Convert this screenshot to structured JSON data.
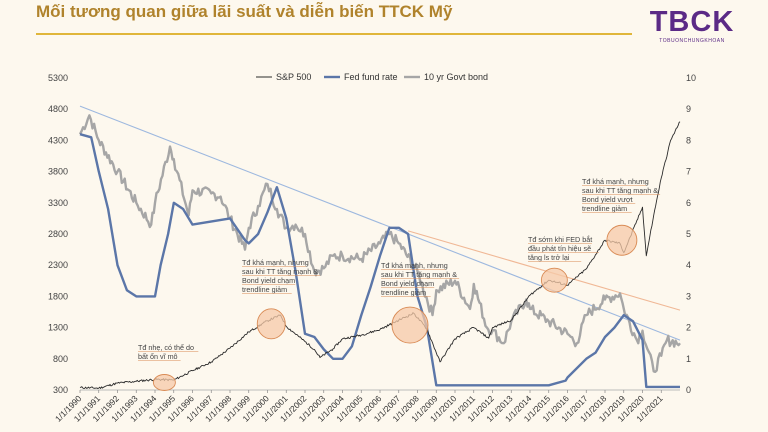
{
  "header": {
    "title": "Mối tương quan giữa lãi suất và diễn biến TTCK Mỹ",
    "logo_main": "TBCK",
    "logo_sub": "TOBUONCHUNGKHOAN"
  },
  "colors": {
    "sp500": "#2b2b2b",
    "fed": "#5b76a8",
    "bond": "#a6a6a6",
    "trend_blue": "#9db8df",
    "trend_orange": "#f0b896",
    "highlight_fill": "#f6c9a8",
    "highlight_stroke": "#d98b55",
    "title_rule": "#e0b63a"
  },
  "chart_data": {
    "type": "line",
    "title": "",
    "legend": [
      "S&P 500",
      "Fed fund rate",
      "10 yr Govt bond"
    ],
    "y_left": {
      "min": 300,
      "max": 5300,
      "ticks": [
        300,
        800,
        1300,
        1800,
        2300,
        2800,
        3300,
        3800,
        4300,
        4800,
        5300
      ]
    },
    "y_right": {
      "min": 0,
      "max": 10,
      "ticks": [
        0,
        1,
        2,
        3,
        4,
        5,
        6,
        7,
        8,
        9,
        10
      ]
    },
    "x_ticks": [
      "1/1/1990",
      "1/1/1991",
      "1/1/1992",
      "1/1/1993",
      "1/1/1994",
      "1/1/1995",
      "1/1/1996",
      "1/1/1997",
      "1/1/1998",
      "1/1/1999",
      "1/1/2000",
      "1/1/2001",
      "1/1/2002",
      "1/1/2003",
      "1/1/2004",
      "1/1/2005",
      "1/1/2006",
      "1/1/2007",
      "1/1/2008",
      "1/1/2009",
      "1/1/2010",
      "1/1/2011",
      "1/1/2012",
      "1/1/2013",
      "1/1/2014",
      "1/1/2015",
      "1/1/2016",
      "1/1/2017",
      "1/1/2018",
      "1/1/2019",
      "1/1/2020",
      "1/1/2021"
    ],
    "x_range": [
      1990,
      2022
    ],
    "series": [
      {
        "name": "S&P 500",
        "axis": "left",
        "x": [
          1990,
          1991,
          1992,
          1993,
          1994,
          1995,
          1996,
          1997,
          1998,
          1999,
          2000,
          2000.7,
          2001,
          2001.7,
          2002.5,
          2002.8,
          2003.5,
          2004,
          2005,
          2006,
          2007,
          2007.8,
          2008.5,
          2009.2,
          2010,
          2011,
          2011.8,
          2012,
          2013,
          2014,
          2015,
          2016,
          2017,
          2018,
          2018.8,
          2019,
          2020,
          2020.2,
          2020.6,
          2021,
          2021.5,
          2022
        ],
        "values": [
          340,
          330,
          410,
          440,
          470,
          460,
          610,
          750,
          970,
          1230,
          1410,
          1500,
          1320,
          1150,
          950,
          820,
          960,
          1120,
          1180,
          1270,
          1420,
          1530,
          1280,
          750,
          1120,
          1300,
          1130,
          1300,
          1420,
          1820,
          2060,
          1980,
          2240,
          2700,
          2650,
          2500,
          3230,
          2450,
          3100,
          3700,
          4300,
          4600
        ]
      },
      {
        "name": "Fed fund rate",
        "axis": "right",
        "x": [
          1990,
          1990.6,
          1991,
          1991.5,
          1992,
          1992.5,
          1993,
          1994,
          1994.3,
          1994.7,
          1995,
          1995.5,
          1996,
          1998,
          1998.8,
          1999,
          1999.5,
          2000,
          2000.5,
          2001,
          2001.5,
          2002,
          2002.5,
          2003,
          2003.5,
          2004,
          2004.5,
          2005,
          2005.5,
          2006,
          2006.5,
          2007,
          2007.5,
          2008,
          2008.5,
          2009,
          2010,
          2015,
          2015.9,
          2016,
          2017,
          2017.5,
          2018,
          2018.5,
          2019,
          2019.5,
          2020,
          2020.2,
          2021,
          2022
        ],
        "values": [
          8.2,
          8.1,
          7.0,
          5.8,
          4.0,
          3.2,
          3.0,
          3.0,
          4.0,
          5.0,
          6.0,
          5.8,
          5.3,
          5.5,
          4.8,
          4.7,
          5.0,
          5.7,
          6.5,
          5.5,
          3.8,
          1.8,
          1.7,
          1.3,
          1.0,
          1.0,
          1.4,
          2.4,
          3.3,
          4.3,
          5.2,
          5.2,
          5.0,
          3.0,
          2.0,
          0.15,
          0.15,
          0.15,
          0.3,
          0.4,
          1.0,
          1.2,
          1.7,
          2.0,
          2.4,
          2.2,
          1.6,
          0.1,
          0.1,
          0.1
        ]
      },
      {
        "name": "10 yr Govt bond",
        "axis": "right",
        "x": [
          1990,
          1990.5,
          1991,
          1992,
          1993,
          1993.8,
          1994,
          1994.8,
          1995,
          1995.8,
          1996,
          1997,
          1997.5,
          1998,
          1998.8,
          1999,
          1999.5,
          2000,
          2000.5,
          2001,
          2001.5,
          2002,
          2002.5,
          2003,
          2003.5,
          2004,
          2005,
          2006,
          2006.5,
          2007,
          2008,
          2008.8,
          2009,
          2010,
          2010.8,
          2011,
          2011.7,
          2012,
          2012.6,
          2013,
          2013.8,
          2014,
          2015,
          2016,
          2016.5,
          2017,
          2018,
          2018.8,
          2019,
          2019.7,
          2020,
          2020.6,
          2021,
          2021.3,
          2022
        ],
        "values": [
          8.2,
          8.8,
          8.0,
          7.0,
          6.0,
          5.3,
          6.0,
          7.8,
          7.4,
          5.6,
          6.4,
          6.3,
          6.2,
          5.5,
          4.5,
          5.2,
          5.9,
          6.6,
          5.8,
          5.2,
          5.3,
          5.0,
          3.8,
          3.9,
          4.3,
          4.3,
          4.2,
          4.7,
          5.0,
          4.7,
          3.8,
          2.4,
          3.2,
          3.5,
          2.6,
          3.4,
          2.0,
          1.9,
          1.5,
          2.2,
          2.9,
          2.6,
          2.2,
          1.8,
          1.5,
          2.4,
          2.9,
          3.1,
          2.6,
          1.6,
          1.9,
          0.6,
          1.1,
          1.6,
          1.5
        ]
      }
    ],
    "annotations": [
      {
        "label": "Tđ nhẹ, có thể do bất ổn vĩ mô",
        "lines": [
          "Tđ nhẹ, có thể do",
          "bất ổn vĩ mô"
        ],
        "year": 1994.5,
        "value": 420
      },
      {
        "label": "Tđ khá mạnh, nhưng sau khi TT tăng mạnh & Bond yield chạm trendline giảm",
        "lines": [
          "Tđ khá mạnh, nhưng",
          "sau khi TT tăng mạnh &",
          "Bond yield chạm",
          "trendline giảm"
        ],
        "year": 2000.2,
        "value": 1360
      },
      {
        "label": "Tđ khá mạnh, nhưng sau khi TT tăng mạnh & Bond yield chạm trendline giảm",
        "lines": [
          "Tđ khá mạnh, nhưng",
          "sau khi TT tăng mạnh &",
          "Bond yield chạm",
          "trendline giảm"
        ],
        "year": 2007.6,
        "value": 1340
      },
      {
        "label": "Tđ sớm khi FED bắt đầu phát tín hiệu sẽ tăng ls trở lại",
        "lines": [
          "Tđ sớm khi FED bắt",
          "đầu phát tín hiệu sẽ",
          "tăng ls trở lại"
        ],
        "year": 2015.3,
        "value": 2060
      },
      {
        "label": "Tđ khá mạnh, nhưng sau khi TT tăng mạnh & Bond yield vượt trendline giảm",
        "lines": [
          "Tđ khá mạnh, nhưng",
          "sau khi TT tăng mạnh &",
          "Bond yield vượt",
          "trendline giảm"
        ],
        "year": 2018.9,
        "value": 2700
      }
    ],
    "trendlines": [
      {
        "name": "blue-downtrend",
        "axis": "left",
        "from": [
          1990,
          4850
        ],
        "to": [
          2022,
          1100
        ]
      },
      {
        "name": "orange-downtrend",
        "axis": "left",
        "from": [
          2007.5,
          2850
        ],
        "to": [
          2022,
          1580
        ]
      }
    ]
  }
}
